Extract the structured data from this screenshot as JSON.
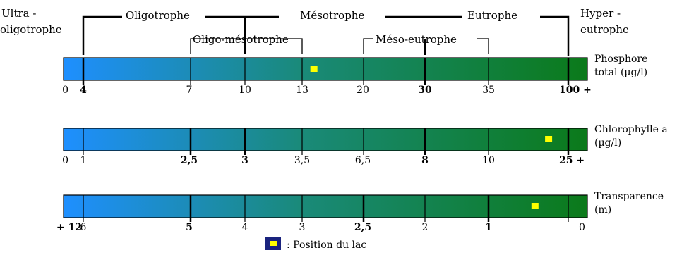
{
  "trophic": {
    "ultra": [
      "Ultra -",
      "oligotrophe"
    ],
    "oligotrophe": "Oligotrophe",
    "mesotrophe": "Mésotrophe",
    "eutrophe": "Eutrophe",
    "hyper": [
      "Hyper -",
      "eutrophe"
    ],
    "oligo_meso": "Oligo-mésotrophe",
    "meso_eu": "Méso-eutrophe"
  },
  "bars": [
    {
      "label": [
        "Phosphore",
        "total (µg/l)"
      ],
      "ticks": [
        "0",
        "4",
        "7",
        "10",
        "13",
        "20",
        "30",
        "35",
        "100 +"
      ],
      "bold_ticks": [
        1,
        6,
        8
      ],
      "marker_position": 0.478
    },
    {
      "label": [
        "Chlorophylle a",
        "(µg/l)"
      ],
      "ticks": [
        "0",
        "1",
        "2,5",
        "3",
        "3,5",
        "6,5",
        "8",
        "10",
        "25 +"
      ],
      "bold_ticks": [
        2,
        3,
        6,
        8
      ],
      "marker_position": 0.926
    },
    {
      "label": [
        "Transparence",
        "(m)"
      ],
      "ticks": [
        "+ 12",
        "6",
        "5",
        "4",
        "3",
        "2,5",
        "2",
        "1",
        "0"
      ],
      "bold_ticks": [
        0,
        2,
        5,
        7
      ],
      "marker_position": 0.9
    }
  ],
  "legend": {
    "text": ": Position du lac"
  },
  "colors": {
    "bar_start": "#1e8fff",
    "bar_mid": "#1a8a7a",
    "bar_end": "#0b7a1a",
    "marker": "#ffff00",
    "legend_box": "#1a237e"
  }
}
